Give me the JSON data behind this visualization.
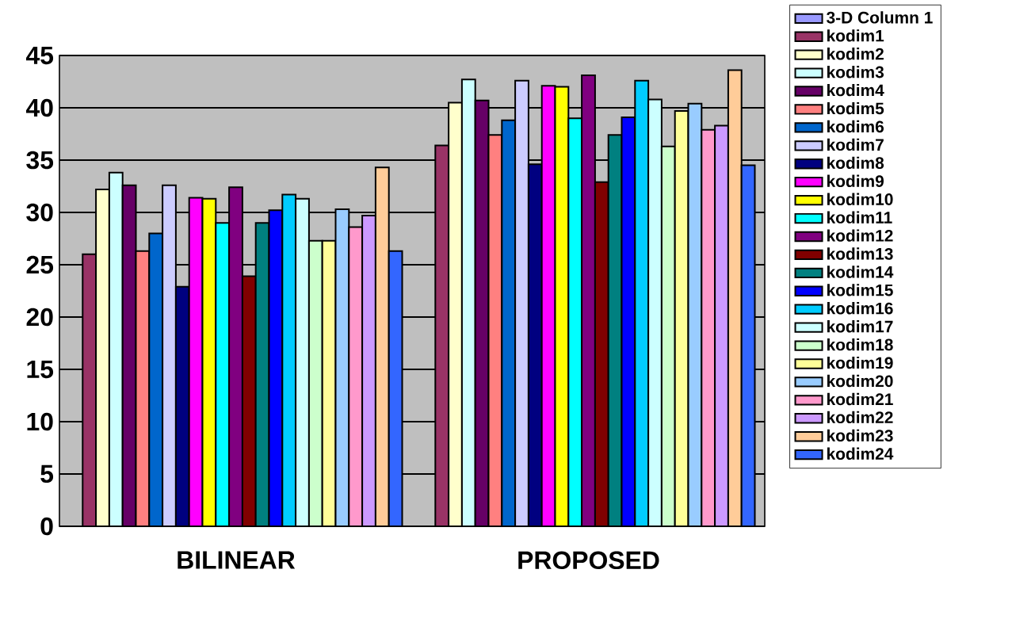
{
  "chart_data": {
    "type": "bar",
    "categories": [
      "BILINEAR",
      "PROPOSED"
    ],
    "series": [
      {
        "name": "3-D Column 1",
        "color": "#9999ff",
        "values": [
          null,
          null
        ]
      },
      {
        "name": "kodim1",
        "color": "#993366",
        "values": [
          26.0,
          36.4
        ]
      },
      {
        "name": "kodim2",
        "color": "#ffffcc",
        "values": [
          32.2,
          40.5
        ]
      },
      {
        "name": "kodim3",
        "color": "#ccffff",
        "values": [
          33.8,
          42.7
        ]
      },
      {
        "name": "kodim4",
        "color": "#660066",
        "values": [
          32.6,
          40.7
        ]
      },
      {
        "name": "kodim5",
        "color": "#ff8080",
        "values": [
          26.3,
          37.4
        ]
      },
      {
        "name": "kodim6",
        "color": "#0066cc",
        "values": [
          28.0,
          38.8
        ]
      },
      {
        "name": "kodim7",
        "color": "#ccccff",
        "values": [
          32.6,
          42.6
        ]
      },
      {
        "name": "kodim8",
        "color": "#000080",
        "values": [
          22.9,
          34.6
        ]
      },
      {
        "name": "kodim9",
        "color": "#ff00ff",
        "values": [
          31.4,
          42.1
        ]
      },
      {
        "name": "kodim10",
        "color": "#ffff00",
        "values": [
          31.3,
          42.0
        ]
      },
      {
        "name": "kodim11",
        "color": "#00ffff",
        "values": [
          29.0,
          39.0
        ]
      },
      {
        "name": "kodim12",
        "color": "#800080",
        "values": [
          32.4,
          43.1
        ]
      },
      {
        "name": "kodim13",
        "color": "#800000",
        "values": [
          23.9,
          32.9
        ]
      },
      {
        "name": "kodim14",
        "color": "#008080",
        "values": [
          29.0,
          37.4
        ]
      },
      {
        "name": "kodim15",
        "color": "#0000ff",
        "values": [
          30.2,
          39.1
        ]
      },
      {
        "name": "kodim16",
        "color": "#00ccff",
        "values": [
          31.7,
          42.6
        ]
      },
      {
        "name": "kodim17",
        "color": "#ccffff",
        "values": [
          31.3,
          40.8
        ]
      },
      {
        "name": "kodim18",
        "color": "#ccffcc",
        "values": [
          27.3,
          36.3
        ]
      },
      {
        "name": "kodim19",
        "color": "#ffff99",
        "values": [
          27.3,
          39.7
        ]
      },
      {
        "name": "kodim20",
        "color": "#99ccff",
        "values": [
          30.3,
          40.4
        ]
      },
      {
        "name": "kodim21",
        "color": "#ff99cc",
        "values": [
          28.6,
          37.9
        ]
      },
      {
        "name": "kodim22",
        "color": "#cc99ff",
        "values": [
          29.7,
          38.3
        ]
      },
      {
        "name": "kodim23",
        "color": "#ffcc99",
        "values": [
          34.3,
          43.6
        ]
      },
      {
        "name": "kodim24",
        "color": "#3366ff",
        "values": [
          26.3,
          34.5
        ]
      }
    ],
    "ylim": [
      0,
      45
    ],
    "yticks": [
      0,
      5,
      10,
      15,
      20,
      25,
      30,
      35,
      40,
      45
    ],
    "grid": "y",
    "legend": "right"
  }
}
